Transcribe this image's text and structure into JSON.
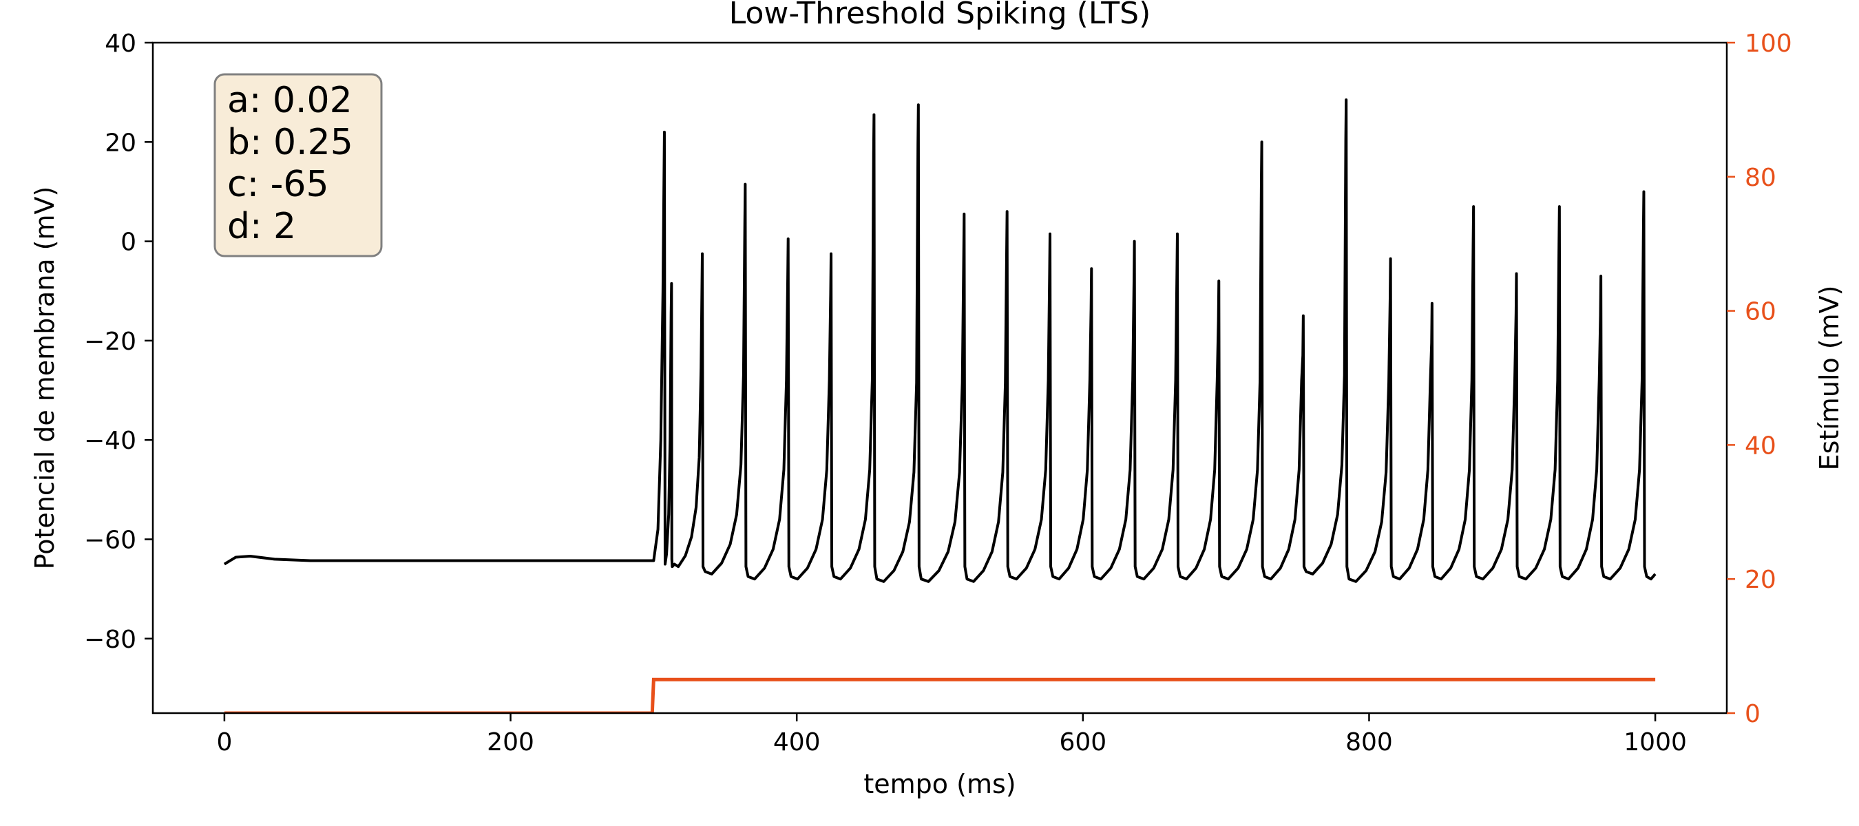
{
  "chart_data": {
    "type": "line",
    "title": "Low-Threshold Spiking (LTS)",
    "xlabel": "tempo (ms)",
    "ylabel": "Potencial de membrana (mV)",
    "ylabel_right": "Estímulo (mV)",
    "xlim": [
      -50,
      1050
    ],
    "ylim": [
      -95,
      40
    ],
    "ylim_right": [
      0,
      100
    ],
    "x_ticks": [
      0,
      200,
      400,
      600,
      800,
      1000
    ],
    "y_ticks": [
      40,
      20,
      0,
      -20,
      -40,
      -60,
      -80
    ],
    "y_ticks_right": [
      0,
      20,
      40,
      60,
      80,
      100
    ],
    "grid": false,
    "colors": {
      "membrane": "#000000",
      "stimulus": "#e8501a",
      "right_axis": "#e8501a",
      "box_fill": "#f8ecd8",
      "box_edge": "#808080"
    },
    "parameters_box": [
      "a: 0.02",
      "b: 0.25",
      "c: -65",
      "d: 2"
    ],
    "series": [
      {
        "axis": "left",
        "rest_points": [
          [
            0,
            -65
          ],
          [
            8,
            -63.6
          ],
          [
            18,
            -63.4
          ],
          [
            35,
            -64.0
          ],
          [
            60,
            -64.3
          ],
          [
            300,
            -64.3
          ]
        ],
        "onset": [
          [
            300,
            -64.3
          ],
          [
            303,
            -58
          ],
          [
            305,
            -40
          ],
          [
            306.5,
            -10
          ],
          [
            307.5,
            22
          ],
          [
            308,
            -65
          ]
        ],
        "spikes": [
          {
            "t": 308,
            "peak": 22,
            "rise": [
              308,
              312.5
            ],
            "trough": -65,
            "reset": -62,
            "dur": 4.5
          },
          {
            "t": 312.5,
            "peak": -8.5,
            "trough": -65.5
          },
          {
            "t": 334,
            "peak": -2.5,
            "trough": -67
          },
          {
            "t": 364,
            "peak": 11.5,
            "trough": -68
          },
          {
            "t": 394,
            "peak": 0.5,
            "trough": -68
          },
          {
            "t": 424,
            "peak": -2.5,
            "trough": -68
          },
          {
            "t": 454,
            "peak": 25.5,
            "trough": -68.5
          },
          {
            "t": 485,
            "peak": 27.5,
            "trough": -68.5
          },
          {
            "t": 517,
            "peak": 5.5,
            "trough": -68.5
          },
          {
            "t": 547,
            "peak": 6,
            "trough": -68
          },
          {
            "t": 577,
            "peak": 1.5,
            "trough": -68
          },
          {
            "t": 606,
            "peak": -5.5,
            "trough": -68
          },
          {
            "t": 636,
            "peak": 0,
            "trough": -68
          },
          {
            "t": 666,
            "peak": 1.5,
            "trough": -68
          },
          {
            "t": 695,
            "peak": -8,
            "trough": -68
          },
          {
            "t": 725,
            "peak": 20,
            "trough": -68
          },
          {
            "t": 754,
            "peak": -15,
            "trough": -67
          },
          {
            "t": 784,
            "peak": 28.5,
            "trough": -68.5
          },
          {
            "t": 815,
            "peak": -3.5,
            "trough": -68
          },
          {
            "t": 844,
            "peak": -12.5,
            "trough": -68
          },
          {
            "t": 873,
            "peak": 7,
            "trough": -68
          },
          {
            "t": 903,
            "peak": -6.5,
            "trough": -68
          },
          {
            "t": 933,
            "peak": 7,
            "trough": -68
          },
          {
            "t": 962,
            "peak": -7,
            "trough": -68
          },
          {
            "t": 992,
            "peak": 10,
            "trough": -68
          }
        ],
        "end": [
          1000,
          -67
        ]
      },
      {
        "axis": "right",
        "points": [
          [
            0,
            0
          ],
          [
            299,
            0
          ],
          [
            300,
            5
          ],
          [
            1000,
            5
          ]
        ]
      }
    ]
  }
}
